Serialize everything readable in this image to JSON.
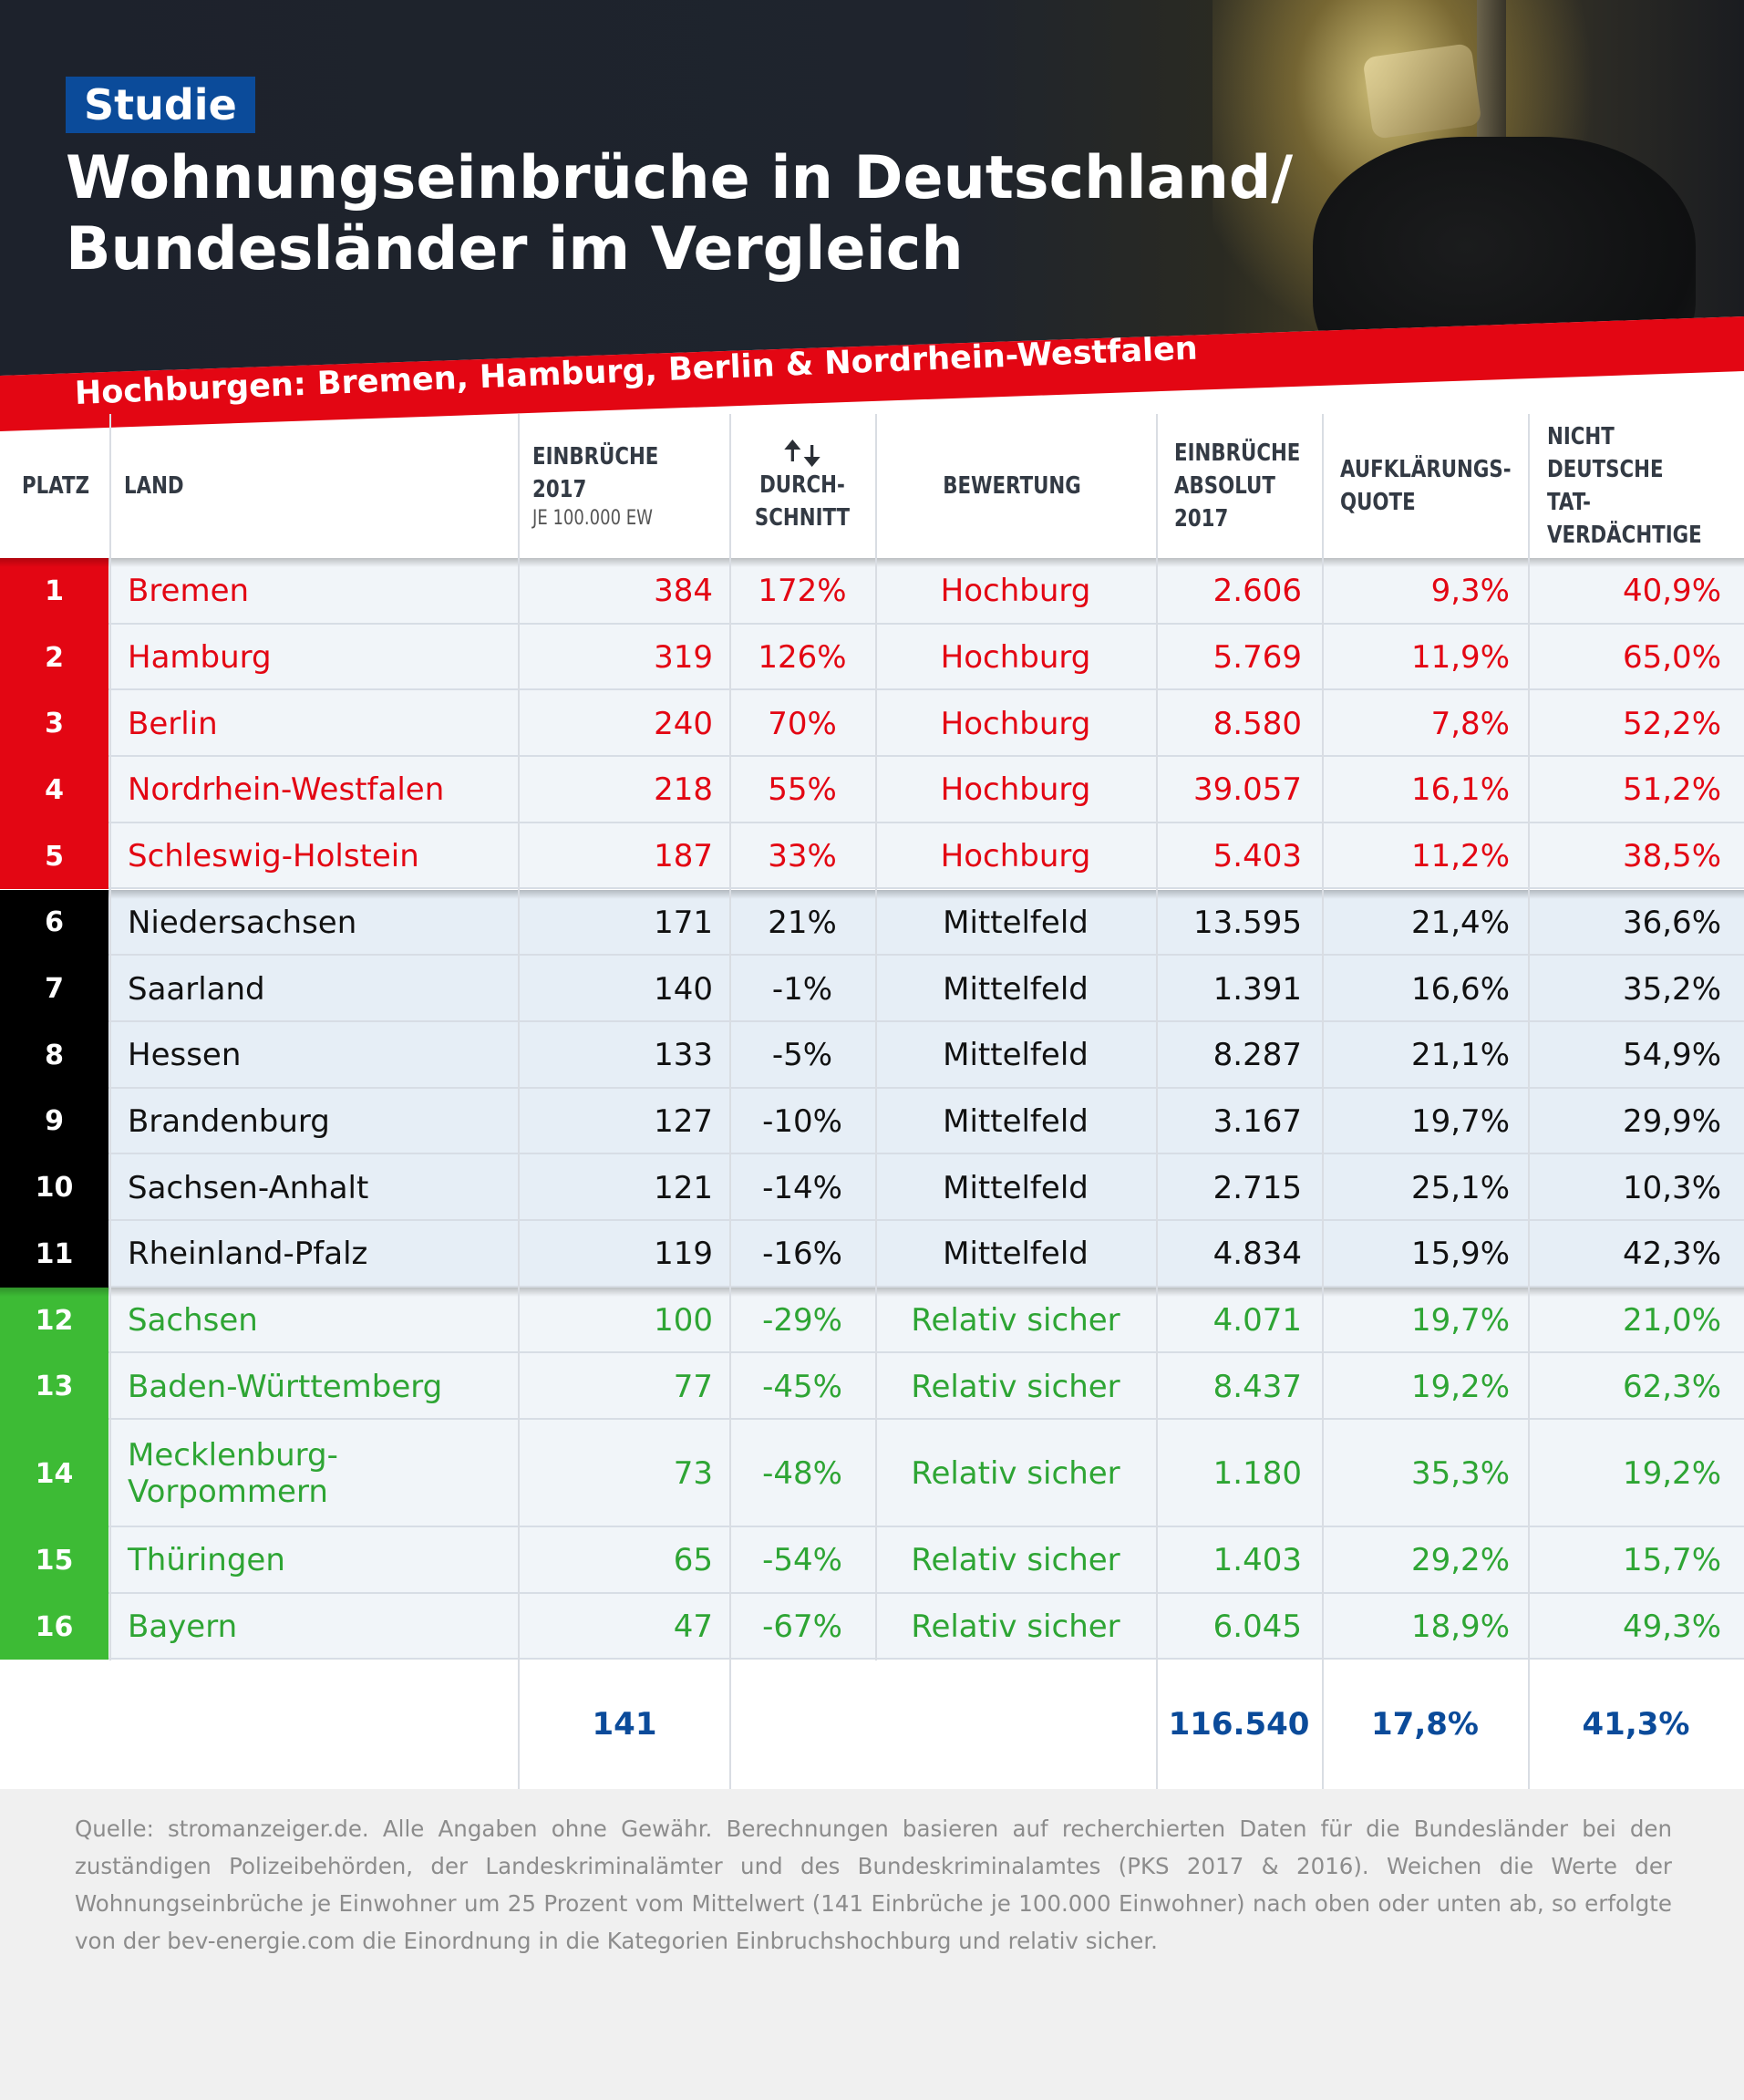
{
  "header": {
    "badge": "Studie",
    "title_line1": "Wohnungseinbrüche in Deutschland/",
    "title_line2": "Bundesländer im Vergleich",
    "subtitle": "Hochburgen: Bremen, Hamburg, Berlin & Nordrhein-Westfalen"
  },
  "colors": {
    "hochburg": "#e30613",
    "mittelfeld": "#000000",
    "relativ_sicher": "#2ea534",
    "accent": "#0b4b9a"
  },
  "chart_data": {
    "type": "table",
    "columns": [
      {
        "label": "PLATZ"
      },
      {
        "label": "LAND"
      },
      {
        "label": "EINBRÜCHE 2017",
        "sublabel": "JE 100.000 EW"
      },
      {
        "label": "DURCH-SCHNITT",
        "icon": "up-down-arrows-icon"
      },
      {
        "label": "BEWERTUNG"
      },
      {
        "label": "EINBRÜCHE ABSOLUT 2017"
      },
      {
        "label": "AUFKLÄRUNGS-QUOTE"
      },
      {
        "label": "NICHT DEUTSCHE TAT-VERDÄCHTIGE"
      }
    ],
    "rows": [
      {
        "platz": "1",
        "land": "Bremen",
        "je100k": "384",
        "schnitt": "172%",
        "bewertung": "Hochburg",
        "absolut": "2.606",
        "quote": "9,3%",
        "nicht_deutsch": "40,9%",
        "group": "hochburg"
      },
      {
        "platz": "2",
        "land": "Hamburg",
        "je100k": "319",
        "schnitt": "126%",
        "bewertung": "Hochburg",
        "absolut": "5.769",
        "quote": "11,9%",
        "nicht_deutsch": "65,0%",
        "group": "hochburg"
      },
      {
        "platz": "3",
        "land": "Berlin",
        "je100k": "240",
        "schnitt": "70%",
        "bewertung": "Hochburg",
        "absolut": "8.580",
        "quote": "7,8%",
        "nicht_deutsch": "52,2%",
        "group": "hochburg"
      },
      {
        "platz": "4",
        "land": "Nordrhein-Westfalen",
        "je100k": "218",
        "schnitt": "55%",
        "bewertung": "Hochburg",
        "absolut": "39.057",
        "quote": "16,1%",
        "nicht_deutsch": "51,2%",
        "group": "hochburg"
      },
      {
        "platz": "5",
        "land": "Schleswig-Holstein",
        "je100k": "187",
        "schnitt": "33%",
        "bewertung": "Hochburg",
        "absolut": "5.403",
        "quote": "11,2%",
        "nicht_deutsch": "38,5%",
        "group": "hochburg"
      },
      {
        "platz": "6",
        "land": "Niedersachsen",
        "je100k": "171",
        "schnitt": "21%",
        "bewertung": "Mittelfeld",
        "absolut": "13.595",
        "quote": "21,4%",
        "nicht_deutsch": "36,6%",
        "group": "mittelfeld"
      },
      {
        "platz": "7",
        "land": "Saarland",
        "je100k": "140",
        "schnitt": "-1%",
        "bewertung": "Mittelfeld",
        "absolut": "1.391",
        "quote": "16,6%",
        "nicht_deutsch": "35,2%",
        "group": "mittelfeld"
      },
      {
        "platz": "8",
        "land": "Hessen",
        "je100k": "133",
        "schnitt": "-5%",
        "bewertung": "Mittelfeld",
        "absolut": "8.287",
        "quote": "21,1%",
        "nicht_deutsch": "54,9%",
        "group": "mittelfeld"
      },
      {
        "platz": "9",
        "land": "Brandenburg",
        "je100k": "127",
        "schnitt": "-10%",
        "bewertung": "Mittelfeld",
        "absolut": "3.167",
        "quote": "19,7%",
        "nicht_deutsch": "29,9%",
        "group": "mittelfeld"
      },
      {
        "platz": "10",
        "land": "Sachsen-Anhalt",
        "je100k": "121",
        "schnitt": "-14%",
        "bewertung": "Mittelfeld",
        "absolut": "2.715",
        "quote": "25,1%",
        "nicht_deutsch": "10,3%",
        "group": "mittelfeld"
      },
      {
        "platz": "11",
        "land": "Rheinland-Pfalz",
        "je100k": "119",
        "schnitt": "-16%",
        "bewertung": "Mittelfeld",
        "absolut": "4.834",
        "quote": "15,9%",
        "nicht_deutsch": "42,3%",
        "group": "mittelfeld"
      },
      {
        "platz": "12",
        "land": "Sachsen",
        "je100k": "100",
        "schnitt": "-29%",
        "bewertung": "Relativ sicher",
        "absolut": "4.071",
        "quote": "19,7%",
        "nicht_deutsch": "21,0%",
        "group": "relativ_sicher"
      },
      {
        "platz": "13",
        "land": "Baden-Württemberg",
        "je100k": "77",
        "schnitt": "-45%",
        "bewertung": "Relativ sicher",
        "absolut": "8.437",
        "quote": "19,2%",
        "nicht_deutsch": "62,3%",
        "group": "relativ_sicher"
      },
      {
        "platz": "14",
        "land": "Mecklenburg-Vorpommern",
        "je100k": "73",
        "schnitt": "-48%",
        "bewertung": "Relativ sicher",
        "absolut": "1.180",
        "quote": "35,3%",
        "nicht_deutsch": "19,2%",
        "group": "relativ_sicher"
      },
      {
        "platz": "15",
        "land": "Thüringen",
        "je100k": "65",
        "schnitt": "-54%",
        "bewertung": "Relativ sicher",
        "absolut": "1.403",
        "quote": "29,2%",
        "nicht_deutsch": "15,7%",
        "group": "relativ_sicher"
      },
      {
        "platz": "16",
        "land": "Bayern",
        "je100k": "47",
        "schnitt": "-67%",
        "bewertung": "Relativ sicher",
        "absolut": "6.045",
        "quote": "18,9%",
        "nicht_deutsch": "49,3%",
        "group": "relativ_sicher"
      }
    ],
    "totals": {
      "je100k": "141",
      "absolut": "116.540",
      "quote": "17,8%",
      "nicht_deutsch": "41,3%"
    }
  },
  "footer": {
    "source": "Quelle: stromanzeiger.de. Alle Angaben ohne Gewähr. Berechnungen basieren auf recherchierten Daten für die Bundesländer bei den zuständigen Polizeibehörden, der Landeskriminalämter und des Bundeskriminalamtes (PKS 2017 & 2016). Weichen die Werte der Wohnungseinbrüche je Einwohner um 25 Prozent vom Mittelwert (141 Einbrüche je 100.000 Einwohner) nach oben oder unten ab, so erfolgte von der bev-energie.com die Einordnung in die Kategorien Einbruchshochburg und relativ sicher."
  }
}
